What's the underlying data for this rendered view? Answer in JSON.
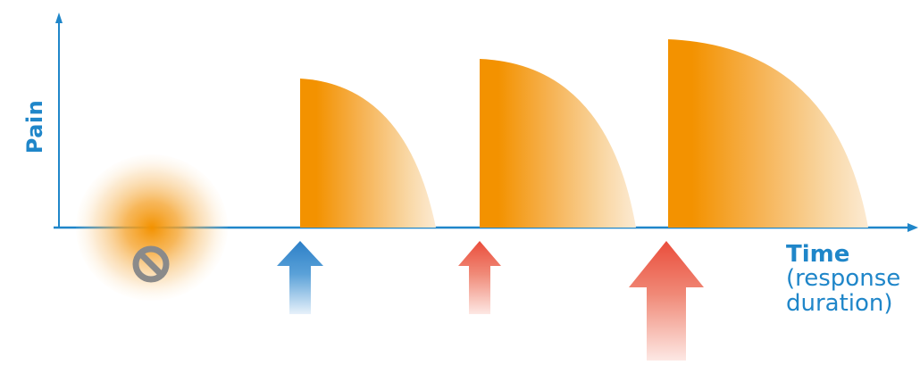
{
  "diagram": {
    "axis_y_label": "Pain",
    "axis_x_title": "Time",
    "axis_x_note_line1": "(response",
    "axis_x_note_line2": "duration)",
    "colors": {
      "axis": "#1f86c9",
      "pain_orange": "#f39200",
      "blue_arrow": "#2c7fc7",
      "red_arrow": "#ea4d3b",
      "no_symbol": "#8a8a8a"
    },
    "symbols": [
      {
        "name": "no-response-icon",
        "meaning": "no intervention"
      },
      {
        "name": "blue-arrow-icon",
        "meaning": "small intervention"
      },
      {
        "name": "red-arrow-small-icon",
        "meaning": "medium intervention"
      },
      {
        "name": "red-arrow-large-icon",
        "meaning": "large intervention"
      }
    ]
  }
}
